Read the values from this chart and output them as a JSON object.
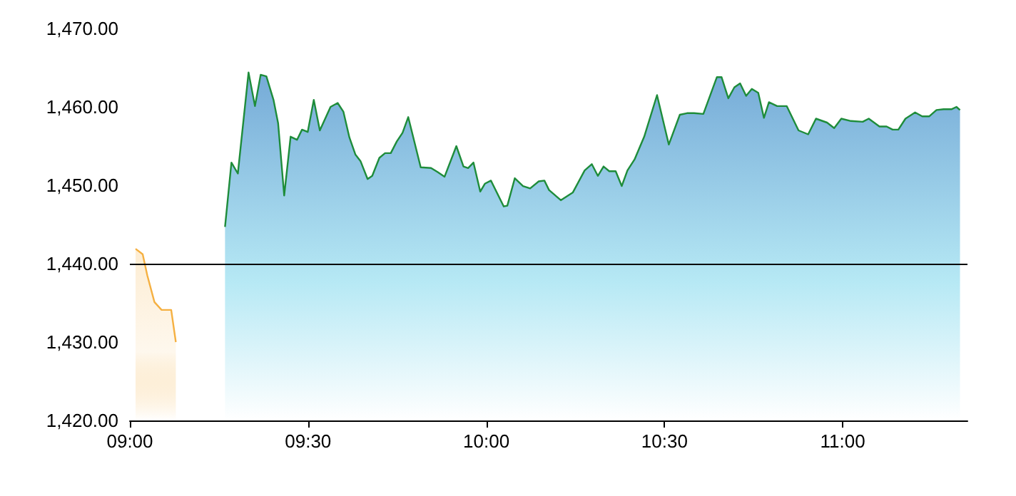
{
  "chart_data": {
    "type": "area",
    "xlim": [
      9,
      11.35
    ],
    "ylim": [
      1420,
      1470
    ],
    "xticks": [
      {
        "value": 9,
        "label": "09:00"
      },
      {
        "value": 9.5,
        "label": "09:30"
      },
      {
        "value": 10,
        "label": "10:00"
      },
      {
        "value": 10.5,
        "label": "10:30"
      },
      {
        "value": 11,
        "label": "11:00"
      }
    ],
    "yticks": [
      {
        "value": 1420,
        "label": "1,420.00"
      },
      {
        "value": 1430,
        "label": "1,430.00"
      },
      {
        "value": 1440,
        "label": "1,440.00"
      },
      {
        "value": 1450,
        "label": "1,450.00"
      },
      {
        "value": 1460,
        "label": "1,460.00"
      },
      {
        "value": 1470,
        "label": "1,470.00"
      }
    ],
    "grid": false,
    "marker": "none",
    "line_style": "solid",
    "ref_lines": [
      {
        "axis": "y",
        "value": 1440,
        "color": "#000000"
      }
    ],
    "series": [
      {
        "color": "#f5b041",
        "x": [
          9.016,
          9.036,
          9.049,
          9.069,
          9.089,
          9.116,
          9.129
        ],
        "values": [
          1441.9,
          1441.2,
          1438.5,
          1435.1,
          1434.1,
          1434.1,
          1430.0
        ]
      },
      {
        "color": "#1e8c3a",
        "x": [
          9.267,
          9.285,
          9.303,
          9.333,
          9.351,
          9.367,
          9.383,
          9.403,
          9.416,
          9.433,
          9.451,
          9.469,
          9.483,
          9.499,
          9.516,
          9.533,
          9.563,
          9.583,
          9.599,
          9.616,
          9.633,
          9.647,
          9.667,
          9.68,
          9.7,
          9.716,
          9.732,
          9.749,
          9.765,
          9.781,
          9.816,
          9.845,
          9.863,
          9.883,
          9.916,
          9.936,
          9.949,
          9.964,
          9.983,
          9.996,
          10.013,
          10.049,
          10.059,
          10.08,
          10.103,
          10.123,
          10.147,
          10.163,
          10.176,
          10.209,
          10.243,
          10.276,
          10.296,
          10.313,
          10.329,
          10.345,
          10.363,
          10.38,
          10.396,
          10.416,
          10.443,
          10.479,
          10.512,
          10.543,
          10.563,
          10.583,
          10.609,
          10.647,
          10.66,
          10.679,
          10.696,
          10.712,
          10.729,
          10.745,
          10.763,
          10.779,
          10.793,
          10.816,
          10.843,
          10.876,
          10.903,
          10.925,
          10.956,
          10.976,
          10.996,
          11.023,
          11.056,
          11.073,
          11.103,
          11.123,
          11.14,
          11.156,
          11.176,
          11.203,
          11.223,
          11.243,
          11.263,
          11.283,
          11.305,
          11.319,
          11.329
        ],
        "values": [
          1444.7,
          1452.9,
          1451.5,
          1464.4,
          1460.1,
          1464.1,
          1463.9,
          1460.9,
          1457.9,
          1448.7,
          1456.2,
          1455.8,
          1457.1,
          1456.8,
          1460.9,
          1457.0,
          1460.0,
          1460.5,
          1459.4,
          1456.1,
          1453.9,
          1453.1,
          1450.8,
          1451.2,
          1453.5,
          1454.1,
          1454.1,
          1455.6,
          1456.7,
          1458.7,
          1452.3,
          1452.2,
          1451.7,
          1451.1,
          1455.0,
          1452.4,
          1452.2,
          1452.9,
          1449.2,
          1450.2,
          1450.6,
          1447.3,
          1447.4,
          1450.9,
          1449.9,
          1449.6,
          1450.5,
          1450.6,
          1449.4,
          1448.1,
          1449.1,
          1451.9,
          1452.7,
          1451.2,
          1452.4,
          1451.8,
          1451.8,
          1449.9,
          1451.9,
          1453.3,
          1456.2,
          1461.5,
          1455.2,
          1459.0,
          1459.2,
          1459.2,
          1459.1,
          1463.8,
          1463.8,
          1461.1,
          1462.5,
          1463.0,
          1461.4,
          1462.3,
          1461.8,
          1458.6,
          1460.6,
          1460.1,
          1460.1,
          1457.0,
          1456.5,
          1458.5,
          1458.0,
          1457.3,
          1458.5,
          1458.2,
          1458.1,
          1458.5,
          1457.5,
          1457.5,
          1457.1,
          1457.1,
          1458.5,
          1459.3,
          1458.8,
          1458.8,
          1459.6,
          1459.7,
          1459.7,
          1460.0,
          1459.6
        ]
      }
    ]
  }
}
